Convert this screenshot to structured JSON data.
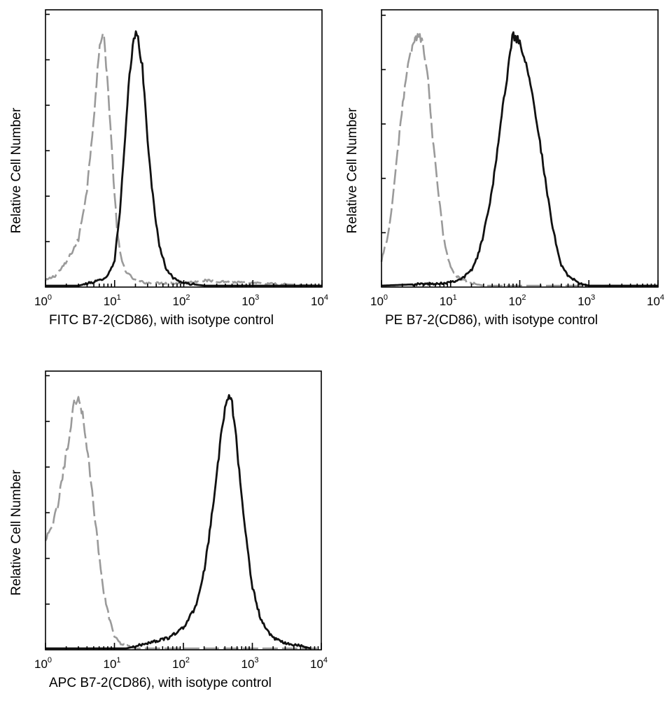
{
  "colors": {
    "sample": "#111111",
    "isotype": "#9a9a9a",
    "frame": "#000000"
  },
  "chart_data": [
    {
      "type": "line",
      "xscale": "log",
      "xlim": [
        1,
        10000
      ],
      "ylabel": "Relative Cell Number",
      "xlabel": "FITC  B7-2(CD86),  with isotype control",
      "x_ticks": [
        {
          "base": "10",
          "exp": "0"
        },
        {
          "base": "10",
          "exp": "1"
        },
        {
          "base": "10",
          "exp": "2"
        },
        {
          "base": "10",
          "exp": "3"
        },
        {
          "base": "10",
          "exp": "4"
        }
      ],
      "y_ticks": 6,
      "series": [
        {
          "name": "isotype control",
          "style": "dashed-gray",
          "x": [
            1.0,
            1.4,
            2,
            3,
            4,
            5,
            5.8,
            6.5,
            7,
            7.8,
            8.7,
            10,
            11,
            12.5,
            15,
            20,
            30,
            100,
            200,
            1000,
            10000
          ],
          "y": [
            0.02,
            0.04,
            0.09,
            0.18,
            0.38,
            0.66,
            0.88,
            0.98,
            0.97,
            0.82,
            0.62,
            0.35,
            0.2,
            0.1,
            0.05,
            0.02,
            0.01,
            0.01,
            0.02,
            0.01,
            0.0
          ]
        },
        {
          "name": "B7-2(CD86)",
          "style": "solid-black",
          "x": [
            1.0,
            3,
            6,
            8,
            10,
            12,
            14,
            16,
            18,
            20,
            22,
            25,
            28,
            32,
            38,
            45,
            55,
            70,
            100,
            200,
            1000,
            10000
          ],
          "y": [
            0.0,
            0.0,
            0.02,
            0.04,
            0.1,
            0.3,
            0.55,
            0.78,
            0.92,
            0.99,
            0.96,
            0.86,
            0.68,
            0.48,
            0.28,
            0.15,
            0.07,
            0.03,
            0.01,
            0.0,
            0.0,
            0.0
          ]
        }
      ]
    },
    {
      "type": "line",
      "xscale": "log",
      "xlim": [
        1,
        10000
      ],
      "ylabel": "Relative Cell Number",
      "xlabel": "PE  B7-2(CD86),  with isotype control",
      "x_ticks": [
        {
          "base": "10",
          "exp": "0"
        },
        {
          "base": "10",
          "exp": "1"
        },
        {
          "base": "10",
          "exp": "2"
        },
        {
          "base": "10",
          "exp": "3"
        },
        {
          "base": "10",
          "exp": "4"
        }
      ],
      "y_ticks": 5,
      "series": [
        {
          "name": "isotype control",
          "style": "dashed-gray",
          "x": [
            1.0,
            1.3,
            1.6,
            2,
            2.5,
            3,
            3.5,
            4,
            4.8,
            5.5,
            6.5,
            8,
            10,
            13,
            20,
            30,
            10000
          ],
          "y": [
            0.1,
            0.22,
            0.45,
            0.7,
            0.88,
            0.96,
            0.98,
            0.94,
            0.78,
            0.58,
            0.38,
            0.18,
            0.07,
            0.03,
            0.01,
            0.0,
            0.0
          ]
        },
        {
          "name": "B7-2(CD86)",
          "style": "solid-black",
          "x": [
            1.0,
            8,
            12,
            15,
            20,
            25,
            30,
            40,
            50,
            60,
            70,
            80,
            100,
            130,
            160,
            200,
            250,
            300,
            400,
            500,
            700,
            1000,
            10000
          ],
          "y": [
            0.0,
            0.01,
            0.02,
            0.03,
            0.06,
            0.12,
            0.2,
            0.38,
            0.58,
            0.74,
            0.88,
            0.98,
            0.95,
            0.85,
            0.72,
            0.54,
            0.36,
            0.22,
            0.08,
            0.04,
            0.01,
            0.0,
            0.0
          ]
        }
      ]
    },
    {
      "type": "line",
      "xscale": "log",
      "xlim": [
        1,
        10000
      ],
      "ylabel": "Relative Cell Number",
      "xlabel": "APC  B7-2(CD86), with isotype control",
      "x_ticks": [
        {
          "base": "10",
          "exp": "0"
        },
        {
          "base": "10",
          "exp": "1"
        },
        {
          "base": "10",
          "exp": "2"
        },
        {
          "base": "10",
          "exp": "3"
        },
        {
          "base": "10",
          "exp": "4"
        }
      ],
      "y_ticks": 6,
      "series": [
        {
          "name": "isotype control",
          "style": "dashed-gray",
          "x": [
            1.0,
            1.2,
            1.5,
            1.8,
            2.2,
            2.6,
            3,
            3.5,
            4,
            5,
            6,
            7,
            8.5,
            10,
            12,
            15,
            20,
            10000
          ],
          "y": [
            0.42,
            0.46,
            0.55,
            0.68,
            0.82,
            0.95,
            0.98,
            0.9,
            0.78,
            0.55,
            0.36,
            0.22,
            0.11,
            0.05,
            0.02,
            0.01,
            0.0,
            0.0
          ]
        },
        {
          "name": "B7-2(CD86)",
          "style": "solid-black",
          "x": [
            1.0,
            15,
            30,
            60,
            100,
            150,
            200,
            250,
            300,
            350,
            400,
            450,
            500,
            550,
            650,
            800,
            1000,
            1300,
            1600,
            2000,
            3000,
            5000,
            7000
          ],
          "y": [
            0.0,
            0.0,
            0.02,
            0.04,
            0.08,
            0.16,
            0.3,
            0.48,
            0.66,
            0.82,
            0.93,
            0.99,
            0.96,
            0.88,
            0.68,
            0.44,
            0.24,
            0.12,
            0.07,
            0.04,
            0.02,
            0.01,
            0.0
          ]
        }
      ]
    }
  ]
}
